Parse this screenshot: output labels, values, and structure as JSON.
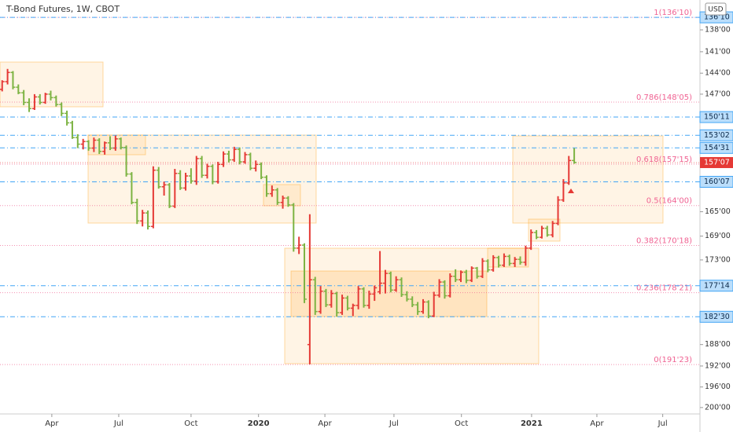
{
  "chart_data": {
    "type": "ohlc",
    "title": "T-Bond Futures, 1W, CBOT",
    "currency": "USD",
    "log_scale": true,
    "inverted": true,
    "up_color": "#7cb342",
    "down_color": "#e53935",
    "ylim": [
      134.01,
      201.26
    ],
    "yticks": [
      {
        "value": 138,
        "label": "138'00"
      },
      {
        "value": 141,
        "label": "141'00"
      },
      {
        "value": 144,
        "label": "144'00"
      },
      {
        "value": 147,
        "label": "147'00"
      },
      {
        "value": 165,
        "label": "165'00"
      },
      {
        "value": 169,
        "label": "169'00"
      },
      {
        "value": 173,
        "label": "173'00"
      },
      {
        "value": 188,
        "label": "188'00"
      },
      {
        "value": 192,
        "label": "192'00"
      },
      {
        "value": 196,
        "label": "196'00"
      },
      {
        "value": 200,
        "label": "200'00"
      }
    ],
    "xlim": [
      -0.4,
      129.3
    ],
    "xticks": [
      {
        "value": 9.2,
        "label": "Apr"
      },
      {
        "value": 21.6,
        "label": "Jul"
      },
      {
        "value": 35.0,
        "label": "Oct"
      },
      {
        "value": 47.5,
        "label": "2020"
      },
      {
        "value": 59.8,
        "label": "Apr"
      },
      {
        "value": 72.6,
        "label": "Jul"
      },
      {
        "value": 85.1,
        "label": "Oct"
      },
      {
        "value": 98.1,
        "label": "2021"
      },
      {
        "value": 110.2,
        "label": "Apr"
      },
      {
        "value": 122.4,
        "label": "Jul"
      }
    ],
    "fib_color": "#f06292",
    "fib_levels": [
      {
        "value": 136.3125,
        "label": "1(136'10)"
      },
      {
        "value": 148.15625,
        "label": "0.786(148'05)"
      },
      {
        "value": 157.46875,
        "label": "0.618(157'15)"
      },
      {
        "value": 164,
        "label": "0.5(164'00)"
      },
      {
        "value": 170.5625,
        "label": "0.382(170'18)"
      },
      {
        "value": 178.65625,
        "label": "0.236(178'21)"
      },
      {
        "value": 191.71875,
        "label": "0(191'23)"
      }
    ],
    "level_color": "#42a5f5",
    "levels": [
      {
        "value": 136.3125,
        "label": "136'10"
      },
      {
        "value": 150.34375,
        "label": "150'11"
      },
      {
        "value": 153.0625,
        "label": "153'02"
      },
      {
        "value": 154.96875,
        "label": "154'31"
      },
      {
        "value": 160.21875,
        "label": "160'07"
      },
      {
        "value": 177.4375,
        "label": "177'14"
      },
      {
        "value": 182.9375,
        "label": "182'30"
      }
    ],
    "last_price": {
      "value": 157.21875,
      "label": "157'07"
    },
    "ohlc": [
      [
        146.3,
        146.6,
        145.0,
        145.2
      ],
      [
        145.2,
        145.6,
        143.4,
        143.9
      ],
      [
        143.9,
        146.3,
        143.7,
        146.0
      ],
      [
        146.0,
        147.0,
        145.6,
        146.8
      ],
      [
        146.8,
        148.6,
        146.4,
        148.2
      ],
      [
        148.2,
        149.6,
        147.6,
        149.1
      ],
      [
        149.1,
        149.3,
        147.0,
        147.4
      ],
      [
        147.4,
        148.5,
        147.0,
        148.2
      ],
      [
        148.2,
        148.4,
        146.8,
        147.0
      ],
      [
        147.0,
        147.9,
        146.5,
        147.5
      ],
      [
        147.5,
        148.8,
        147.2,
        148.5
      ],
      [
        148.5,
        150.2,
        148.2,
        149.8
      ],
      [
        149.8,
        151.6,
        149.4,
        151.2
      ],
      [
        151.2,
        153.6,
        150.9,
        153.4
      ],
      [
        153.4,
        155.0,
        152.9,
        154.4
      ],
      [
        154.4,
        155.2,
        153.6,
        154.0
      ],
      [
        154.0,
        155.4,
        153.8,
        155.0
      ],
      [
        155.0,
        155.6,
        153.4,
        153.8
      ],
      [
        153.8,
        155.9,
        153.5,
        155.5
      ],
      [
        155.5,
        156.0,
        154.0,
        154.2
      ],
      [
        154.2,
        155.3,
        153.2,
        155.0
      ],
      [
        155.0,
        155.4,
        153.1,
        153.6
      ],
      [
        153.6,
        155.2,
        153.4,
        154.9
      ],
      [
        154.9,
        159.4,
        154.6,
        159.0
      ],
      [
        159.0,
        163.8,
        158.7,
        163.5
      ],
      [
        163.5,
        167.0,
        162.9,
        166.5
      ],
      [
        166.5,
        167.4,
        164.7,
        165.2
      ],
      [
        165.2,
        167.9,
        164.8,
        167.4
      ],
      [
        167.4,
        167.7,
        157.8,
        158.4
      ],
      [
        158.4,
        161.3,
        157.9,
        161.0
      ],
      [
        161.0,
        162.4,
        160.2,
        160.7
      ],
      [
        160.7,
        164.4,
        160.4,
        164.1
      ],
      [
        164.1,
        164.4,
        158.2,
        158.9
      ],
      [
        158.9,
        161.5,
        158.4,
        161.2
      ],
      [
        161.2,
        161.6,
        158.8,
        159.3
      ],
      [
        159.3,
        160.5,
        158.1,
        160.1
      ],
      [
        160.1,
        160.7,
        156.2,
        156.6
      ],
      [
        156.6,
        159.6,
        156.2,
        159.2
      ],
      [
        159.2,
        159.7,
        157.4,
        157.8
      ],
      [
        157.8,
        160.6,
        157.5,
        160.2
      ],
      [
        160.2,
        160.5,
        157.1,
        157.5
      ],
      [
        157.5,
        157.9,
        155.5,
        155.9
      ],
      [
        155.9,
        157.2,
        155.4,
        156.8
      ],
      [
        156.8,
        157.1,
        154.8,
        155.2
      ],
      [
        155.2,
        157.5,
        154.9,
        157.1
      ],
      [
        157.1,
        157.4,
        155.6,
        156.0
      ],
      [
        156.0,
        158.4,
        155.7,
        158.1
      ],
      [
        158.1,
        158.6,
        156.9,
        157.5
      ],
      [
        157.5,
        159.8,
        157.2,
        159.5
      ],
      [
        159.5,
        162.6,
        159.2,
        162.1
      ],
      [
        162.1,
        162.6,
        160.8,
        161.5
      ],
      [
        161.5,
        163.9,
        161.2,
        163.5
      ],
      [
        163.5,
        164.5,
        162.4,
        162.8
      ],
      [
        162.8,
        164.2,
        162.5,
        163.9
      ],
      [
        163.9,
        171.6,
        163.6,
        171.0
      ],
      [
        171.0,
        172.0,
        169.1,
        170.5
      ],
      [
        170.5,
        180.5,
        170.2,
        179.8
      ],
      [
        188.0,
        191.7,
        165.4,
        176.4
      ],
      [
        176.4,
        182.6,
        175.9,
        182.0
      ],
      [
        182.0,
        182.4,
        177.5,
        178.4
      ],
      [
        178.4,
        181.2,
        178.0,
        180.8
      ],
      [
        180.8,
        181.3,
        178.2,
        178.8
      ],
      [
        178.8,
        182.9,
        178.5,
        182.2
      ],
      [
        182.2,
        182.6,
        179.0,
        179.6
      ],
      [
        179.6,
        181.8,
        179.2,
        181.4
      ],
      [
        181.4,
        182.8,
        180.6,
        180.9
      ],
      [
        180.9,
        181.6,
        177.5,
        178.0
      ],
      [
        178.0,
        181.3,
        177.7,
        180.9
      ],
      [
        180.9,
        181.5,
        178.3,
        178.9
      ],
      [
        178.9,
        180.1,
        177.4,
        177.8
      ],
      [
        178.5,
        178.9,
        171.5,
        177.0
      ],
      [
        177.0,
        178.8,
        174.7,
        175.3
      ],
      [
        175.3,
        178.6,
        175.0,
        178.2
      ],
      [
        178.2,
        178.5,
        175.8,
        176.4
      ],
      [
        176.4,
        179.4,
        176.0,
        179.0
      ],
      [
        179.0,
        180.2,
        178.4,
        179.8
      ],
      [
        179.8,
        181.2,
        179.3,
        180.8
      ],
      [
        180.8,
        182.6,
        180.3,
        182.0
      ],
      [
        182.0,
        182.4,
        179.8,
        180.3
      ],
      [
        180.3,
        183.2,
        180.0,
        182.8
      ],
      [
        182.8,
        183.0,
        178.5,
        179.1
      ],
      [
        179.1,
        179.5,
        176.3,
        176.8
      ],
      [
        176.8,
        179.7,
        176.5,
        179.2
      ],
      [
        179.2,
        179.5,
        175.3,
        175.8
      ],
      [
        175.8,
        176.8,
        174.6,
        176.4
      ],
      [
        176.4,
        176.8,
        174.8,
        175.1
      ],
      [
        175.1,
        177.0,
        174.7,
        176.5
      ],
      [
        176.5,
        176.8,
        174.1,
        174.4
      ],
      [
        174.4,
        176.2,
        174.2,
        175.8
      ],
      [
        175.8,
        176.1,
        172.7,
        173.2
      ],
      [
        173.2,
        175.1,
        172.9,
        174.7
      ],
      [
        174.7,
        175.0,
        172.2,
        172.6
      ],
      [
        172.6,
        174.3,
        172.3,
        173.9
      ],
      [
        173.9,
        174.2,
        171.9,
        172.4
      ],
      [
        172.4,
        174.0,
        172.1,
        173.6
      ],
      [
        173.6,
        174.2,
        172.5,
        172.9
      ],
      [
        172.9,
        173.8,
        172.4,
        173.4
      ],
      [
        173.4,
        174.0,
        170.6,
        171.0
      ],
      [
        171.0,
        171.3,
        167.9,
        168.4
      ],
      [
        168.4,
        169.5,
        168.0,
        169.2
      ],
      [
        169.2,
        169.4,
        167.3,
        167.7
      ],
      [
        167.7,
        169.1,
        167.3,
        168.8
      ],
      [
        168.8,
        169.2,
        166.5,
        166.9
      ],
      [
        166.9,
        167.2,
        162.5,
        163.1
      ],
      [
        163.1,
        163.4,
        159.8,
        160.4
      ],
      [
        160.4,
        160.7,
        156.2,
        156.9
      ],
      [
        156.9,
        157.4,
        155.0,
        157.2
      ]
    ]
  }
}
